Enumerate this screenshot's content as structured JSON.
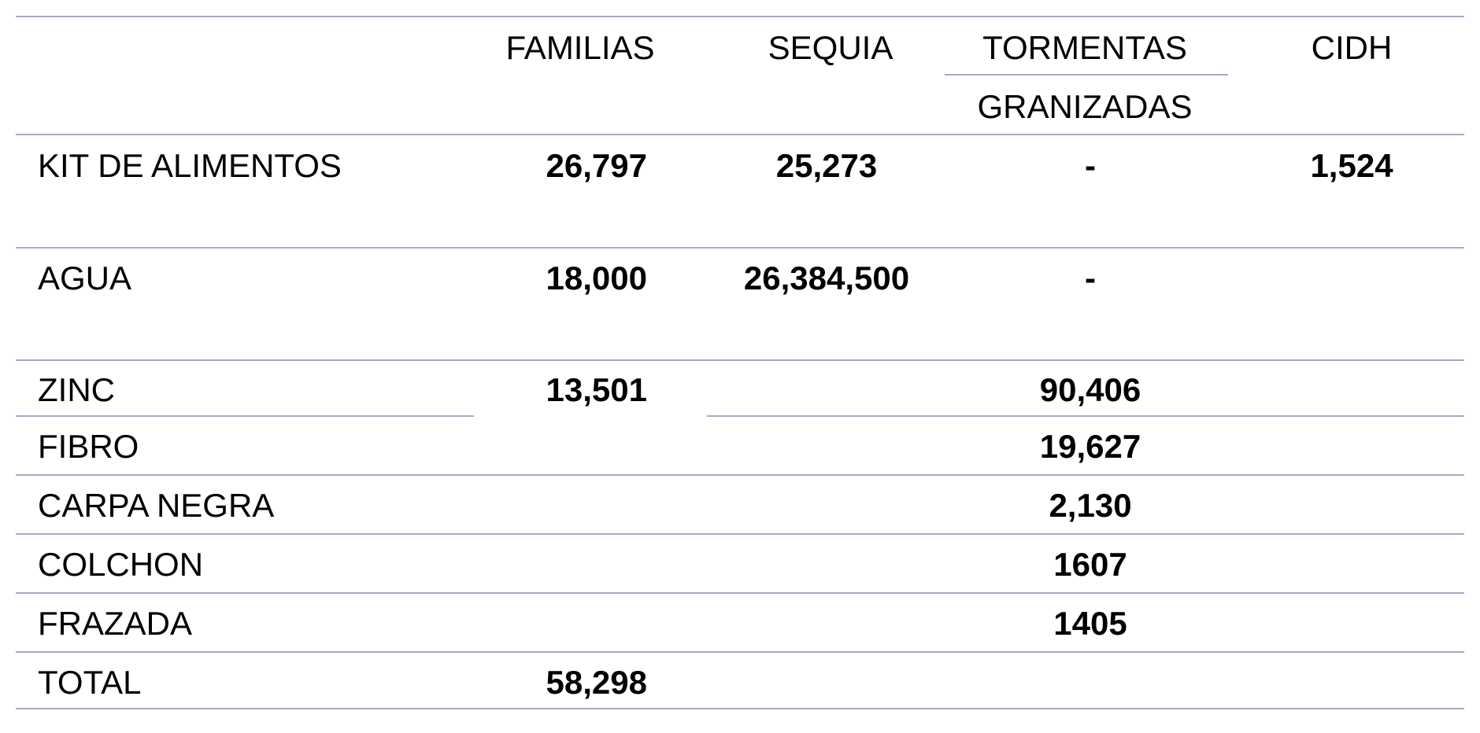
{
  "headers": {
    "familias": "FAMILIAS",
    "sequia": "SEQUIA",
    "tormentas": "TORMENTAS",
    "granizadas": "GRANIZADAS",
    "cidh": "CIDH"
  },
  "rows": [
    {
      "label": "KIT DE ALIMENTOS",
      "familias": "26,797",
      "sequia": "25,273",
      "tormentas": "-",
      "cidh": "1,524"
    },
    {
      "label": "AGUA",
      "familias": "18,000",
      "sequia": "26,384,500",
      "tormentas": "-"
    },
    {
      "label": "ZINC",
      "familias": "13,501",
      "merged": "90,406"
    },
    {
      "label": "FIBRO",
      "merged": "19,627"
    },
    {
      "label": "CARPA NEGRA",
      "merged": "2,130"
    },
    {
      "label": "COLCHON",
      "merged": "1607"
    },
    {
      "label": "FRAZADA",
      "merged": "1405"
    },
    {
      "label": "TOTAL",
      "familias": "58,298"
    }
  ],
  "colors": {
    "rule": "#b3a2cd",
    "text": "#000000",
    "background": "#ffffff"
  }
}
